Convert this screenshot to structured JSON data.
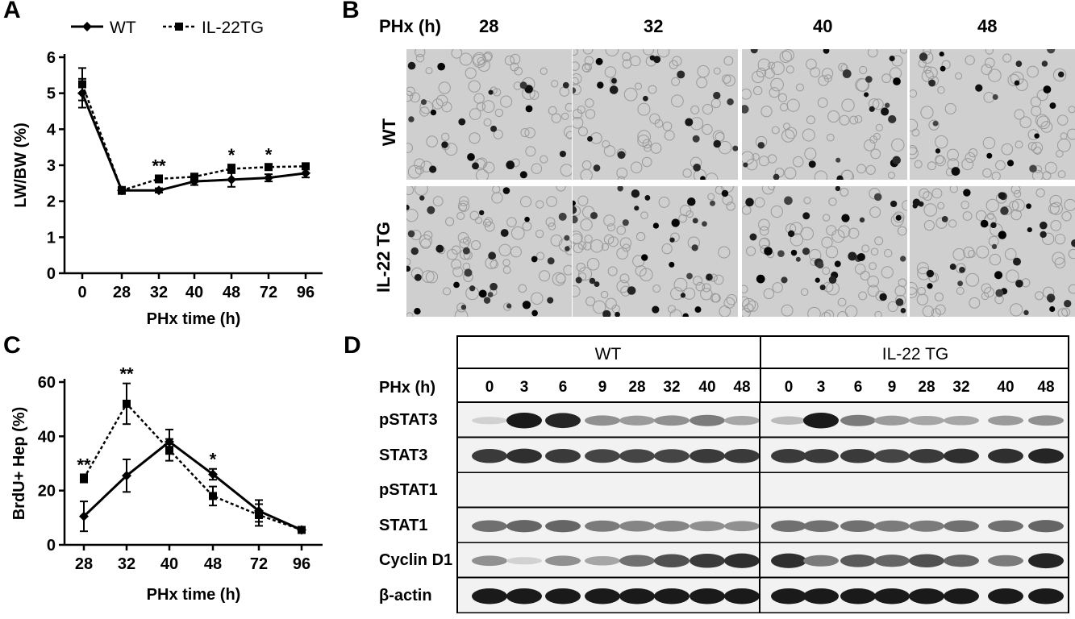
{
  "panels": {
    "A": {
      "label": "A",
      "legend": [
        "WT",
        "IL-22TG"
      ],
      "chart_data": {
        "type": "line",
        "categories": [
          "0",
          "28",
          "32",
          "40",
          "48",
          "72",
          "96"
        ],
        "xlabel": "PHx time (h)",
        "ylabel": "LW/BW (%)",
        "ylim": [
          0,
          6
        ],
        "yticks": [
          "0",
          "1",
          "2",
          "3",
          "4",
          "5",
          "6"
        ],
        "series": [
          {
            "name": "WT",
            "values": [
              5.0,
              2.3,
              2.3,
              2.55,
              2.6,
              2.65,
              2.78
            ],
            "err": [
              0.4,
              0.08,
              0.06,
              0.1,
              0.2,
              0.1,
              0.12
            ]
          },
          {
            "name": "IL-22TG",
            "values": [
              5.25,
              2.3,
              2.62,
              2.68,
              2.9,
              2.95,
              2.97
            ],
            "err": [
              0.45,
              0.1,
              0.1,
              0.08,
              0.12,
              0.08,
              0.08
            ]
          }
        ],
        "annotations": [
          {
            "x": "32",
            "text": "**"
          },
          {
            "x": "48",
            "text": "*"
          },
          {
            "x": "72",
            "text": "*"
          }
        ]
      }
    },
    "B": {
      "label": "B",
      "header_label": "PHx (h)",
      "timepoints": [
        "28",
        "32",
        "40",
        "48"
      ],
      "rows": [
        "WT",
        "IL-22 TG"
      ]
    },
    "C": {
      "label": "C",
      "chart_data": {
        "type": "line",
        "categories": [
          "28",
          "32",
          "40",
          "48",
          "72",
          "96"
        ],
        "xlabel": "PHx time (h)",
        "ylabel": "BrdU+ Hep (%)",
        "ylim": [
          0,
          60
        ],
        "yticks": [
          "0",
          "20",
          "40",
          "60"
        ],
        "series": [
          {
            "name": "WT",
            "values": [
              10.5,
              25.5,
              38,
              26,
              12.5,
              5.5
            ],
            "err": [
              5.5,
              6,
              4.5,
              2,
              4,
              1
            ]
          },
          {
            "name": "IL-22TG",
            "values": [
              24.5,
              52,
              35,
              18,
              11,
              5.5
            ],
            "err": [
              1.5,
              7.5,
              4,
              3.5,
              4,
              1
            ]
          }
        ],
        "annotations": [
          {
            "x": "28",
            "text": "**"
          },
          {
            "x": "32",
            "text": "**"
          },
          {
            "x": "48",
            "text": "*"
          }
        ]
      }
    },
    "D": {
      "label": "D",
      "groups": [
        "WT",
        "IL-22 TG"
      ],
      "lane_header": "PHx (h)",
      "lanes_wt": [
        "0",
        "3",
        "6",
        "9",
        "28",
        "32",
        "40",
        "48"
      ],
      "lanes_tg": [
        "0",
        "3",
        "6",
        "9",
        "28",
        "32",
        "40",
        "48"
      ],
      "blots": [
        "pSTAT3",
        "STAT3",
        "pSTAT1",
        "STAT1",
        "Cyclin D1",
        "β-actin"
      ]
    }
  }
}
